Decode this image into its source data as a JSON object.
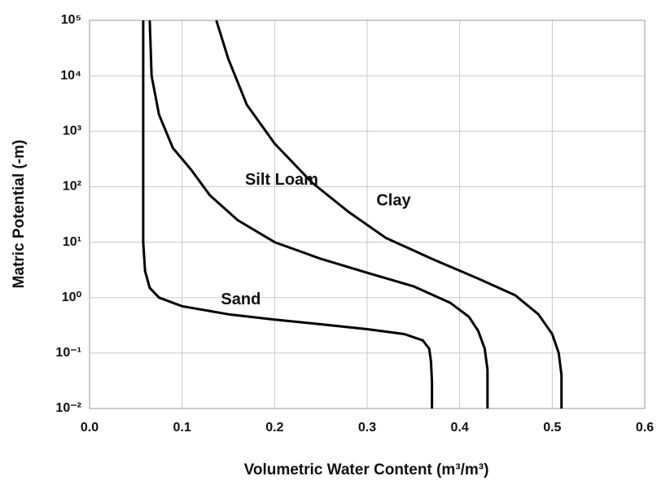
{
  "chart_data": {
    "type": "line",
    "x_label": "Volumetric Water Content (m³/m³)",
    "y_label": "Matric Potential (-m)",
    "xlim": [
      0,
      0.6
    ],
    "xticks": [
      {
        "value": 0,
        "label": "0.0"
      },
      0.1,
      0.2,
      0.3,
      0.4,
      0.5,
      0.6
    ],
    "ylim": [
      0.01,
      100000
    ],
    "yticks": [
      {
        "value": 0.01,
        "label": "10⁻²"
      },
      {
        "value": 0.1,
        "label": "10⁻¹"
      },
      {
        "value": 1,
        "label": "10⁰"
      },
      {
        "value": 10,
        "label": "10¹"
      },
      {
        "value": 100,
        "label": "10²"
      },
      {
        "value": 1000,
        "label": "10³"
      },
      {
        "value": 10000,
        "label": "10⁴"
      },
      {
        "value": 100000,
        "label": "10⁵"
      }
    ],
    "log_y": true,
    "grid": true,
    "series": [
      {
        "name": "Sand",
        "color": "#000000",
        "x": [
          0.058,
          0.058,
          0.058,
          0.06,
          0.065,
          0.075,
          0.1,
          0.15,
          0.2,
          0.25,
          0.3,
          0.34,
          0.36,
          0.367,
          0.369,
          0.37,
          0.37
        ],
        "values": [
          100000,
          1000,
          10,
          3,
          1.5,
          1,
          0.7,
          0.5,
          0.4,
          0.33,
          0.27,
          0.22,
          0.17,
          0.12,
          0.07,
          0.03,
          0.01
        ]
      },
      {
        "name": "Silt Loam",
        "color": "#000000",
        "x": [
          0.065,
          0.067,
          0.075,
          0.09,
          0.11,
          0.13,
          0.16,
          0.2,
          0.25,
          0.3,
          0.35,
          0.39,
          0.41,
          0.42,
          0.427,
          0.43,
          0.43
        ],
        "values": [
          100000,
          10000,
          2000,
          500,
          200,
          70,
          25,
          10,
          5,
          2.8,
          1.6,
          0.8,
          0.45,
          0.25,
          0.12,
          0.05,
          0.01
        ]
      },
      {
        "name": "Clay",
        "color": "#000000",
        "x": [
          0.137,
          0.15,
          0.17,
          0.2,
          0.24,
          0.28,
          0.32,
          0.37,
          0.42,
          0.46,
          0.485,
          0.5,
          0.507,
          0.51,
          0.51
        ],
        "values": [
          100000,
          20000,
          3000,
          600,
          120,
          35,
          12,
          5,
          2.2,
          1.1,
          0.5,
          0.22,
          0.1,
          0.04,
          0.01
        ]
      }
    ],
    "annotations": [
      {
        "text": "Sand",
        "x": 0.142,
        "y": 0.9
      },
      {
        "text": "Silt Loam",
        "x": 0.168,
        "y": 130
      },
      {
        "text": "Clay",
        "x": 0.31,
        "y": 55
      }
    ]
  }
}
